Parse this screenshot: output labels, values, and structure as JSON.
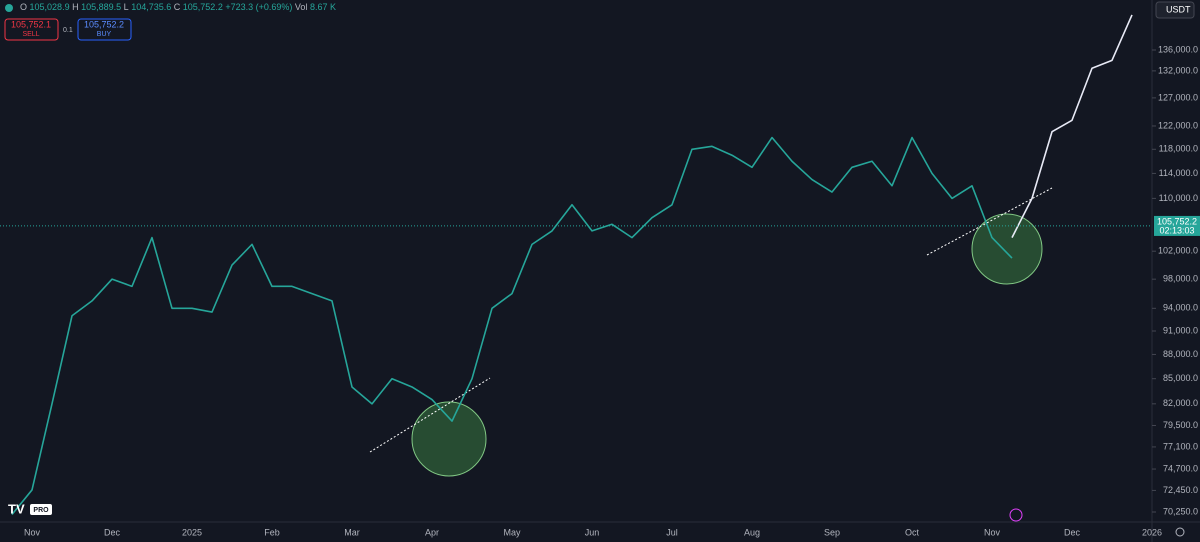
{
  "toolbar": {
    "ohlc": [
      {
        "key": "O",
        "text": "105,028.9"
      },
      {
        "key": "H",
        "text": "105,889.5"
      },
      {
        "key": "L",
        "text": "104,735.6"
      },
      {
        "key": "C",
        "text": "105,752.2"
      }
    ],
    "change": "+723.3 (+0.69%)",
    "volume_key": "Vol",
    "volume": "8.67 K",
    "sell_price": "105,752.1",
    "sell": "SELL",
    "quantity": "0.1",
    "buy_price": "105,752.2",
    "buy": "BUY",
    "currency": "USDT",
    "logo": "PRO"
  },
  "chart_data": {
    "type": "line",
    "log_scale": true,
    "grid": false,
    "categories": [
      null,
      "Nov",
      null,
      null,
      null,
      "Dec",
      null,
      null,
      null,
      "2025",
      null,
      null,
      null,
      "Feb",
      null,
      null,
      null,
      "Mar",
      null,
      null,
      null,
      "Apr",
      null,
      null,
      null,
      "May",
      null,
      null,
      null,
      "Jun",
      null,
      null,
      null,
      "Jul",
      null,
      null,
      null,
      "Aug",
      null,
      null,
      null,
      "Sep",
      null,
      null,
      null,
      "Oct",
      null,
      null,
      null,
      "Nov",
      null,
      null,
      null,
      "Dec",
      null,
      null,
      null,
      "2026"
    ],
    "series": [
      {
        "color": "#26a69a",
        "values": [
          70000,
          72500,
          82000,
          93000,
          95000,
          98000,
          97000,
          104000,
          94000,
          94000,
          93500,
          100000,
          103000,
          97000,
          97000,
          96000,
          95000,
          84000,
          82000,
          85000,
          84000,
          82500,
          80000,
          85000,
          94000,
          96000,
          103000,
          105000,
          109000,
          105000,
          106000,
          104000,
          107000,
          109000,
          118000,
          118500,
          117000,
          115000,
          120000,
          116000,
          113000,
          111000,
          115000,
          116000,
          112000,
          120000,
          114000,
          110000,
          112000,
          104000,
          101000,
          null,
          null,
          null,
          null,
          null,
          null,
          null
        ]
      },
      {
        "color": "#e8eaf6",
        "values": [
          null,
          null,
          null,
          null,
          null,
          null,
          null,
          null,
          null,
          null,
          null,
          null,
          null,
          null,
          null,
          null,
          null,
          null,
          null,
          null,
          null,
          null,
          null,
          null,
          null,
          null,
          null,
          null,
          null,
          null,
          null,
          null,
          null,
          null,
          null,
          null,
          null,
          null,
          null,
          null,
          null,
          null,
          null,
          null,
          null,
          null,
          null,
          null,
          null,
          null,
          104000,
          110000,
          121000,
          123000,
          132500,
          134000,
          143000,
          null
        ]
      }
    ],
    "ylim": [
      69450,
      146080
    ],
    "yticks": [
      {
        "value": 136000,
        "label": "136,000.0"
      },
      {
        "value": 132000,
        "label": "132,000.0"
      },
      {
        "value": 127000,
        "label": "127,000.0"
      },
      {
        "value": 122000,
        "label": "122,000.0"
      },
      {
        "value": 118000,
        "label": "118,000.0"
      },
      {
        "value": 114000,
        "label": "114,000.0"
      },
      {
        "value": 110000,
        "label": "110,000.0"
      },
      {
        "value": 102000,
        "label": "102,000.0"
      },
      {
        "value": 98000,
        "label": "98,000.0"
      },
      {
        "value": 94000,
        "label": "94,000.0"
      },
      {
        "value": 91000,
        "label": "91,000.0"
      },
      {
        "value": 88000,
        "label": "88,000.0"
      },
      {
        "value": 85000,
        "label": "85,000.0"
      },
      {
        "value": 82000,
        "label": "82,000.0"
      },
      {
        "value": 79500,
        "label": "79,500.0"
      },
      {
        "value": 77100,
        "label": "77,100.0"
      },
      {
        "value": 74700,
        "label": "74,700.0"
      },
      {
        "value": 72450,
        "label": "72,450.0"
      },
      {
        "value": 70250,
        "label": "70,250.0"
      }
    ],
    "last_price": {
      "value": 105752.2,
      "label": "105,752.2"
    },
    "countdown": "02:13:03"
  }
}
